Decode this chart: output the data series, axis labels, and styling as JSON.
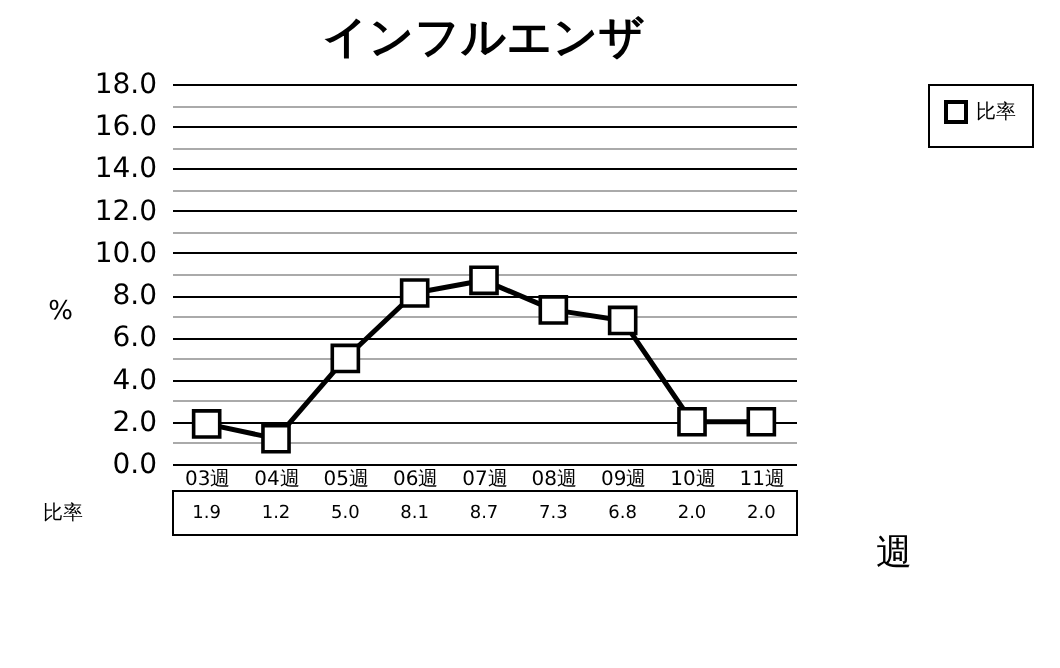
{
  "chart_data": {
    "type": "line",
    "title": "インフルエンザ",
    "xlabel": "週",
    "ylabel": "%",
    "categories": [
      "03週",
      "04週",
      "05週",
      "06週",
      "07週",
      "08週",
      "09週",
      "10週",
      "11週"
    ],
    "series": [
      {
        "name": "比率",
        "color": "#000000",
        "values": [
          1.9,
          1.2,
          5.0,
          8.1,
          8.7,
          7.3,
          6.8,
          2.0,
          2.0
        ],
        "value_labels": [
          "1.9",
          "1.2",
          "5.0",
          "8.1",
          "8.7",
          "7.3",
          "6.8",
          "2.0",
          "2.0"
        ]
      }
    ],
    "ylim": [
      0,
      18
    ],
    "yticks": [
      {
        "value": 0,
        "label": "0.0"
      },
      {
        "value": 1,
        "label": null
      },
      {
        "value": 2,
        "label": "2.0"
      },
      {
        "value": 3,
        "label": null
      },
      {
        "value": 4,
        "label": "4.0"
      },
      {
        "value": 5,
        "label": null
      },
      {
        "value": 6,
        "label": "6.0"
      },
      {
        "value": 7,
        "label": null
      },
      {
        "value": 8,
        "label": "8.0"
      },
      {
        "value": 9,
        "label": null
      },
      {
        "value": 10,
        "label": "10.0"
      },
      {
        "value": 11,
        "label": null
      },
      {
        "value": 12,
        "label": "12.0"
      },
      {
        "value": 13,
        "label": null
      },
      {
        "value": 14,
        "label": "14.0"
      },
      {
        "value": 15,
        "label": null
      },
      {
        "value": 16,
        "label": "16.0"
      },
      {
        "value": 17,
        "label": null
      },
      {
        "value": 18,
        "label": "18.0"
      }
    ],
    "grid": "y",
    "legend": "right",
    "marker": "square",
    "line_style": "solid"
  }
}
